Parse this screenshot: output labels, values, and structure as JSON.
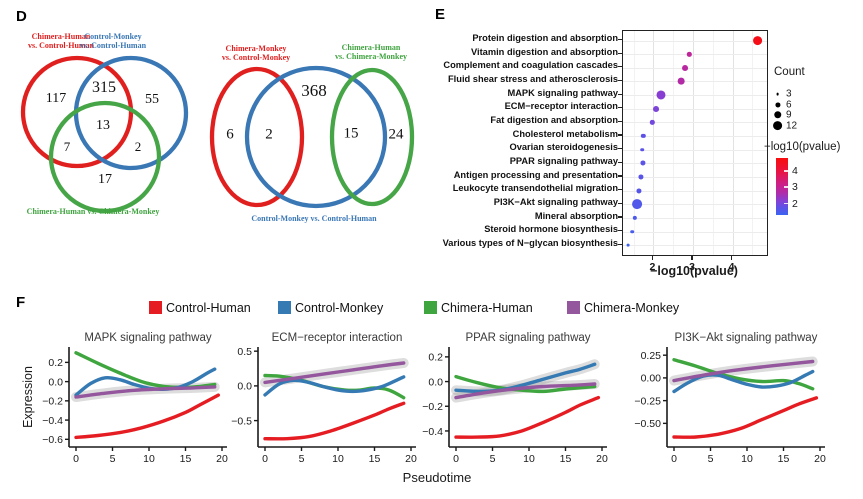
{
  "figure": {
    "panel_labels": {
      "d": "D",
      "e": "E",
      "f": "F"
    }
  },
  "colors": {
    "red": "#e51d23",
    "blue": "#367ab3",
    "green": "#3fa53f",
    "purple": "#94569d",
    "venn_red": "#e0201f",
    "venn_blue": "#3a77b5",
    "venn_green": "#46a546"
  },
  "chart_data": [
    {
      "type": "venn",
      "panel": "D",
      "name": "left-venn",
      "sets": [
        {
          "color_key": "red",
          "label_lines": [
            "Chimera-Human",
            "vs. Control-Human"
          ]
        },
        {
          "color_key": "blue",
          "label_lines": [
            "Control-Monkey",
            "vs. Control-Human"
          ]
        },
        {
          "color_key": "green",
          "label_lines": [
            "Chimera-Human vs. Chimera-Monkey"
          ]
        }
      ],
      "regions": [
        {
          "region": "red_only",
          "value": 117
        },
        {
          "region": "red_blue",
          "value": 315
        },
        {
          "region": "blue_only",
          "value": 55
        },
        {
          "region": "red_blue_green",
          "value": 13
        },
        {
          "region": "red_green",
          "value": 7
        },
        {
          "region": "blue_green",
          "value": 2
        },
        {
          "region": "green_only",
          "value": 17
        }
      ]
    },
    {
      "type": "venn",
      "panel": "D",
      "name": "right-venn",
      "sets": [
        {
          "color_key": "red",
          "label_lines": [
            "Chimera-Monkey",
            "vs. Control-Monkey"
          ]
        },
        {
          "color_key": "blue",
          "label_lines": [
            "Control-Monkey vs. Control-Human"
          ]
        },
        {
          "color_key": "green",
          "label_lines": [
            "Chimera-Human",
            "vs. Chimera-Monkey"
          ]
        }
      ],
      "regions": [
        {
          "region": "red_only",
          "value": 6
        },
        {
          "region": "red_blue",
          "value": 2
        },
        {
          "region": "blue_only",
          "value": 368
        },
        {
          "region": "blue_green",
          "value": 15
        },
        {
          "region": "green_only",
          "value": 24
        }
      ]
    },
    {
      "type": "scatter",
      "panel": "E",
      "name": "pathway-enrichment-dotplot",
      "xlabel": "−log10(pvalue)",
      "xticks": [
        2,
        3,
        4
      ],
      "xlim": [
        1.23,
        4.87
      ],
      "grid": true,
      "rows": [
        {
          "pathway": "Protein digestion and absorption",
          "neglog10_pvalue": 4.63,
          "count": 12
        },
        {
          "pathway": "Vitamin digestion and absorption",
          "neglog10_pvalue": 2.91,
          "count": 5
        },
        {
          "pathway": "Complement and coagulation cascades",
          "neglog10_pvalue": 2.79,
          "count": 7
        },
        {
          "pathway": "Fluid shear stress and atherosclerosis",
          "neglog10_pvalue": 2.7,
          "count": 8
        },
        {
          "pathway": "MAPK signaling pathway",
          "neglog10_pvalue": 2.19,
          "count": 11
        },
        {
          "pathway": "ECM−receptor interaction",
          "neglog10_pvalue": 2.07,
          "count": 7
        },
        {
          "pathway": "Fat digestion and absorption",
          "neglog10_pvalue": 1.97,
          "count": 5
        },
        {
          "pathway": "Cholesterol metabolism",
          "neglog10_pvalue": 1.74,
          "count": 5
        },
        {
          "pathway": "Ovarian steroidogenesis",
          "neglog10_pvalue": 1.72,
          "count": 4
        },
        {
          "pathway": "PPAR signaling pathway",
          "neglog10_pvalue": 1.73,
          "count": 6
        },
        {
          "pathway": "Antigen processing and presentation",
          "neglog10_pvalue": 1.69,
          "count": 6
        },
        {
          "pathway": "Leukocyte transendothelial migration",
          "neglog10_pvalue": 1.64,
          "count": 6
        },
        {
          "pathway": "PI3K−Akt signaling pathway",
          "neglog10_pvalue": 1.58,
          "count": 12
        },
        {
          "pathway": "Mineral absorption",
          "neglog10_pvalue": 1.53,
          "count": 5
        },
        {
          "pathway": "Steroid hormone biosynthesis",
          "neglog10_pvalue": 1.47,
          "count": 4
        },
        {
          "pathway": "Various types of N−glycan biosynthesis",
          "neglog10_pvalue": 1.36,
          "count": 3
        }
      ],
      "legend": {
        "count": {
          "title": "Count",
          "sizes": [
            3,
            6,
            9,
            12
          ]
        },
        "color": {
          "title": "−log10(pvalue)",
          "ticks": [
            4,
            3,
            2
          ],
          "range": [
            1.3,
            4.78
          ]
        }
      },
      "color_scale": [
        {
          "value": 1.3,
          "color": "#3c63f0"
        },
        {
          "value": 1.8,
          "color": "#6150e6"
        },
        {
          "value": 2.2,
          "color": "#8a3ed2"
        },
        {
          "value": 2.7,
          "color": "#b32aa6"
        },
        {
          "value": 3.2,
          "color": "#cc1f87"
        },
        {
          "value": 4.0,
          "color": "#ea1240"
        },
        {
          "value": 4.8,
          "color": "#f80d0d"
        }
      ]
    },
    {
      "type": "line",
      "panel": "F",
      "name": "pathway-expression-pseudotime",
      "xlabel": "Pseudotime",
      "ylabel": "Expression",
      "xticks": [
        0,
        5,
        10,
        15,
        20
      ],
      "legend": [
        {
          "name": "Control-Human",
          "color_key": "red"
        },
        {
          "name": "Control-Monkey",
          "color_key": "blue"
        },
        {
          "name": "Chimera-Human",
          "color_key": "green"
        },
        {
          "name": "Chimera-Monkey",
          "color_key": "purple"
        }
      ],
      "plots": [
        {
          "title": "MAPK signaling pathway",
          "ylim": [
            -0.68,
            0.36
          ],
          "ytick_values": [
            0.2,
            0,
            -0.2,
            -0.4,
            -0.6
          ],
          "ytick_labels": [
            "0.2",
            "0.0",
            "−0.2",
            "−0.4",
            "−0.6"
          ],
          "series": [
            {
              "name": "Chimera-Human",
              "color_key": "green",
              "ci": false,
              "x": [
                0,
                3,
                6,
                9,
                12,
                15,
                17,
                19
              ],
              "y": [
                0.3,
                0.19,
                0.09,
                0.0,
                -0.05,
                -0.06,
                -0.05,
                -0.03
              ]
            },
            {
              "name": "Control-Monkey",
              "color_key": "blue",
              "ci": false,
              "x": [
                0,
                2,
                4,
                6,
                8,
                10,
                12,
                14,
                16,
                18,
                19
              ],
              "y": [
                -0.14,
                -0.02,
                0.04,
                0.02,
                -0.03,
                -0.07,
                -0.08,
                -0.06,
                0.0,
                0.09,
                0.13
              ]
            },
            {
              "name": "Chimera-Monkey",
              "color_key": "purple",
              "ci": true,
              "x": [
                0,
                4,
                8,
                12,
                16,
                19
              ],
              "y": [
                -0.16,
                -0.12,
                -0.09,
                -0.075,
                -0.065,
                -0.055
              ]
            },
            {
              "name": "Control-Human",
              "color_key": "red",
              "ci": false,
              "x": [
                0,
                3,
                6,
                9,
                12,
                15,
                17,
                19.5
              ],
              "y": [
                -0.58,
                -0.56,
                -0.53,
                -0.48,
                -0.41,
                -0.32,
                -0.24,
                -0.14
              ]
            }
          ]
        },
        {
          "title": "ECM−receptor interaction",
          "ylim": [
            -0.88,
            0.56
          ],
          "ytick_values": [
            0.5,
            0,
            -0.5
          ],
          "ytick_labels": [
            "0.5",
            "0.0",
            "−0.5"
          ],
          "series": [
            {
              "name": "Chimera-Human",
              "color_key": "green",
              "ci": false,
              "x": [
                0,
                2,
                5,
                8,
                11,
                13,
                15,
                17,
                19
              ],
              "y": [
                0.15,
                0.14,
                0.08,
                -0.01,
                -0.06,
                -0.06,
                -0.03,
                -0.06,
                -0.17
              ]
            },
            {
              "name": "Control-Monkey",
              "color_key": "blue",
              "ci": false,
              "x": [
                0,
                2,
                4,
                6,
                8,
                10,
                12,
                14,
                16,
                18,
                19
              ],
              "y": [
                -0.13,
                0.03,
                0.08,
                0.05,
                -0.01,
                -0.06,
                -0.08,
                -0.06,
                -0.01,
                0.08,
                0.13
              ]
            },
            {
              "name": "Chimera-Monkey",
              "color_key": "purple",
              "ci": true,
              "x": [
                0,
                4,
                8,
                12,
                16,
                19
              ],
              "y": [
                0.05,
                0.11,
                0.17,
                0.23,
                0.29,
                0.33
              ]
            },
            {
              "name": "Control-Human",
              "color_key": "red",
              "ci": false,
              "x": [
                0,
                3,
                6,
                9,
                12,
                15,
                17,
                19
              ],
              "y": [
                -0.76,
                -0.76,
                -0.73,
                -0.65,
                -0.54,
                -0.42,
                -0.33,
                -0.25
              ]
            }
          ]
        },
        {
          "title": "PPAR signaling pathway",
          "ylim": [
            -0.53,
            0.28
          ],
          "ytick_values": [
            0.2,
            0,
            -0.2,
            -0.4
          ],
          "ytick_labels": [
            "0.2",
            "0.0",
            "−0.2",
            "−0.4"
          ],
          "series": [
            {
              "name": "Chimera-Human",
              "color_key": "green",
              "ci": false,
              "x": [
                0,
                3,
                6,
                9,
                12,
                15,
                19
              ],
              "y": [
                0.04,
                -0.01,
                -0.05,
                -0.07,
                -0.08,
                -0.06,
                -0.04
              ]
            },
            {
              "name": "Control-Monkey",
              "color_key": "blue",
              "ci": true,
              "x": [
                0,
                3,
                6,
                9,
                12,
                15,
                17,
                19
              ],
              "y": [
                -0.07,
                -0.08,
                -0.07,
                -0.03,
                0.02,
                0.07,
                0.1,
                0.14
              ]
            },
            {
              "name": "Chimera-Monkey",
              "color_key": "purple",
              "ci": true,
              "x": [
                0,
                4,
                8,
                12,
                16,
                19
              ],
              "y": [
                -0.13,
                -0.09,
                -0.06,
                -0.04,
                -0.03,
                -0.02
              ]
            },
            {
              "name": "Control-Human",
              "color_key": "red",
              "ci": false,
              "x": [
                0,
                3,
                6,
                9,
                12,
                15,
                17,
                19.5
              ],
              "y": [
                -0.45,
                -0.45,
                -0.44,
                -0.4,
                -0.33,
                -0.25,
                -0.19,
                -0.13
              ]
            }
          ]
        },
        {
          "title": "PI3K−Akt signaling pathway",
          "ylim": [
            -0.76,
            0.34
          ],
          "ytick_values": [
            0.25,
            0,
            -0.25,
            -0.5
          ],
          "ytick_labels": [
            "0.25",
            "0.00",
            "−0.25",
            "−0.50"
          ],
          "series": [
            {
              "name": "Chimera-Human",
              "color_key": "green",
              "ci": false,
              "x": [
                0,
                3,
                6,
                9,
                12,
                15,
                17,
                19
              ],
              "y": [
                0.2,
                0.13,
                0.05,
                -0.01,
                -0.04,
                -0.03,
                -0.06,
                -0.12
              ]
            },
            {
              "name": "Control-Monkey",
              "color_key": "blue",
              "ci": false,
              "x": [
                0,
                2,
                4,
                6,
                8,
                10,
                12,
                14,
                16,
                18,
                19
              ],
              "y": [
                -0.15,
                -0.05,
                0.02,
                0.03,
                -0.02,
                -0.07,
                -0.1,
                -0.09,
                -0.05,
                0.03,
                0.07
              ]
            },
            {
              "name": "Chimera-Monkey",
              "color_key": "purple",
              "ci": true,
              "x": [
                0,
                4,
                8,
                12,
                16,
                19
              ],
              "y": [
                -0.03,
                0.03,
                0.08,
                0.12,
                0.155,
                0.18
              ]
            },
            {
              "name": "Control-Human",
              "color_key": "red",
              "ci": false,
              "x": [
                0,
                3,
                6,
                9,
                12,
                15,
                17,
                19.5
              ],
              "y": [
                -0.65,
                -0.65,
                -0.62,
                -0.56,
                -0.46,
                -0.36,
                -0.29,
                -0.22
              ]
            }
          ]
        }
      ]
    }
  ]
}
